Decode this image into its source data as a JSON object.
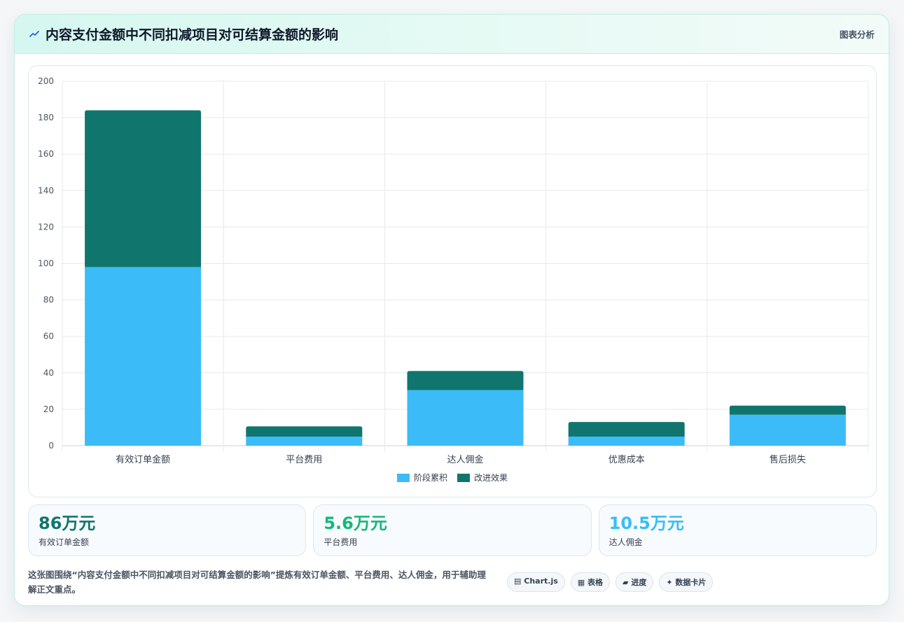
{
  "header": {
    "title": "内容支付金额中不同扣减项目对可结算金额的影响",
    "link": "图表分析"
  },
  "colors": {
    "stage": "#3bbcf8",
    "effect": "#10766d",
    "stat1": "#0f766e",
    "stat2": "#16b87a",
    "stat3": "#38bdf8"
  },
  "chart_data": {
    "type": "bar",
    "stacked": true,
    "categories": [
      "有效订单金额",
      "平台费用",
      "达人佣金",
      "优惠成本",
      "售后损失"
    ],
    "series": [
      {
        "name": "阶段累积",
        "values": [
          98,
          5,
          30.5,
          5,
          17
        ]
      },
      {
        "name": "改进效果",
        "values": [
          86,
          5.6,
          10.5,
          8,
          5
        ]
      }
    ],
    "ylim": [
      0,
      200
    ],
    "yticks": [
      0,
      20,
      40,
      60,
      80,
      100,
      120,
      140,
      160,
      180,
      200
    ],
    "grid": true,
    "legend": "bottom",
    "title": "",
    "xlabel": "",
    "ylabel": ""
  },
  "stats": [
    {
      "value": "86万元",
      "label": "有效订单金额"
    },
    {
      "value": "5.6万元",
      "label": "平台费用"
    },
    {
      "value": "10.5万元",
      "label": "达人佣金"
    }
  ],
  "footer": {
    "note": "这张图围绕“内容支付金额中不同扣减项目对可结算金额的影响”提炼有效订单金额、平台费用、达人佣金，用于辅助理解正文重点。",
    "tags": [
      {
        "icon": "chart-icon",
        "glyph": "▤",
        "label": "Chart.js"
      },
      {
        "icon": "table-icon",
        "glyph": "▦",
        "label": "表格"
      },
      {
        "icon": "progress-icon",
        "glyph": "▰",
        "label": "进度"
      },
      {
        "icon": "sparkle-icon",
        "glyph": "✦",
        "label": "数据卡片"
      }
    ]
  }
}
